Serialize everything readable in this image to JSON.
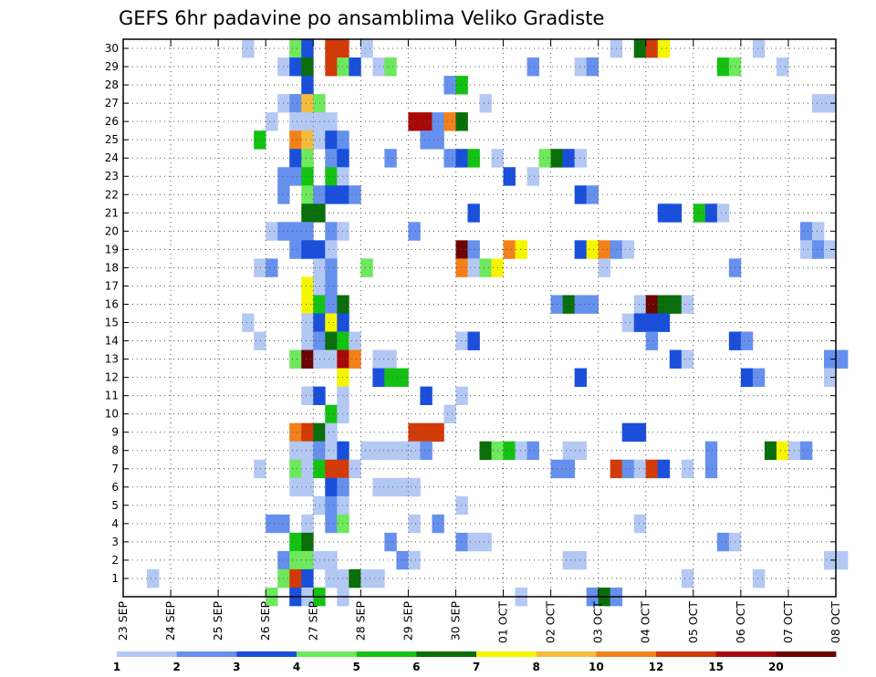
{
  "chart_data": {
    "type": "heatmap",
    "title": "GEFS 6hr padavine po ansamblima Veliko Gradiste",
    "y_categories": [
      "1",
      "2",
      "3",
      "4",
      "5",
      "6",
      "7",
      "8",
      "9",
      "10",
      "11",
      "12",
      "13",
      "14",
      "15",
      "16",
      "17",
      "18",
      "19",
      "20",
      "21",
      "22",
      "23",
      "24",
      "25",
      "26",
      "27",
      "28",
      "29",
      "30"
    ],
    "x_tick_labels": [
      "23 SEP",
      "24 SEP",
      "25 SEP",
      "26 SEP",
      "27 SEP",
      "28 SEP",
      "29 SEP",
      "30 SEP",
      "01 OCT",
      "02 OCT",
      "03 OCT",
      "04 OCT",
      "05 OCT",
      "06 OCT",
      "07 OCT",
      "08 OCT"
    ],
    "x_range_days": [
      0,
      15
    ],
    "steps_per_day": 4,
    "grid": true,
    "colorbar": {
      "labels": [
        "1",
        "2",
        "3",
        "4",
        "5",
        "6",
        "7",
        "8",
        "10",
        "12",
        "15",
        "20"
      ],
      "colors": [
        "#b4c8f4",
        "#6690ee",
        "#1a4fdc",
        "#6ee85c",
        "#14c214",
        "#0a6e0a",
        "#f5f500",
        "#f5bc3c",
        "#f38018",
        "#d23a08",
        "#a80808",
        "#6c0404"
      ]
    },
    "cells": [
      [
        30,
        10,
        1
      ],
      [
        30,
        14,
        4
      ],
      [
        30,
        15,
        3
      ],
      [
        30,
        17,
        10
      ],
      [
        30,
        18,
        10
      ],
      [
        30,
        20,
        1
      ],
      [
        30,
        41,
        1
      ],
      [
        30,
        43,
        6
      ],
      [
        30,
        44,
        10
      ],
      [
        30,
        45,
        7
      ],
      [
        30,
        53,
        1
      ],
      [
        30,
        65,
        2
      ],
      [
        30,
        70,
        1
      ],
      [
        29,
        13,
        1
      ],
      [
        29,
        14,
        3
      ],
      [
        29,
        15,
        6
      ],
      [
        29,
        17,
        10
      ],
      [
        29,
        18,
        4
      ],
      [
        29,
        19,
        3
      ],
      [
        29,
        21,
        1
      ],
      [
        29,
        22,
        4
      ],
      [
        29,
        34,
        2
      ],
      [
        29,
        38,
        1
      ],
      [
        29,
        39,
        2
      ],
      [
        29,
        50,
        5
      ],
      [
        29,
        51,
        4
      ],
      [
        29,
        55,
        1
      ],
      [
        29,
        73,
        6
      ],
      [
        28,
        15,
        3
      ],
      [
        28,
        27,
        2
      ],
      [
        28,
        28,
        5
      ],
      [
        27,
        13,
        1
      ],
      [
        27,
        14,
        2
      ],
      [
        27,
        15,
        8
      ],
      [
        27,
        16,
        4
      ],
      [
        27,
        30,
        1
      ],
      [
        27,
        58,
        1
      ],
      [
        27,
        59,
        1
      ],
      [
        26,
        12,
        1
      ],
      [
        26,
        14,
        1
      ],
      [
        26,
        15,
        1
      ],
      [
        26,
        16,
        1
      ],
      [
        26,
        17,
        1
      ],
      [
        26,
        24,
        11
      ],
      [
        26,
        25,
        11
      ],
      [
        26,
        26,
        2
      ],
      [
        26,
        27,
        9
      ],
      [
        26,
        28,
        6
      ],
      [
        26,
        74,
        1
      ],
      [
        25,
        11,
        5
      ],
      [
        25,
        14,
        9
      ],
      [
        25,
        15,
        8
      ],
      [
        25,
        16,
        1
      ],
      [
        25,
        17,
        3
      ],
      [
        25,
        18,
        2
      ],
      [
        25,
        25,
        2
      ],
      [
        25,
        26,
        2
      ],
      [
        24,
        14,
        3
      ],
      [
        24,
        15,
        4
      ],
      [
        24,
        17,
        2
      ],
      [
        24,
        18,
        3
      ],
      [
        24,
        22,
        2
      ],
      [
        24,
        27,
        2
      ],
      [
        24,
        28,
        3
      ],
      [
        24,
        29,
        5
      ],
      [
        24,
        31,
        1
      ],
      [
        24,
        35,
        4
      ],
      [
        24,
        36,
        6
      ],
      [
        24,
        37,
        3
      ],
      [
        24,
        38,
        1
      ],
      [
        23,
        13,
        2
      ],
      [
        23,
        14,
        2
      ],
      [
        23,
        15,
        5
      ],
      [
        23,
        17,
        5
      ],
      [
        23,
        18,
        1
      ],
      [
        23,
        32,
        3
      ],
      [
        23,
        34,
        1
      ],
      [
        22,
        13,
        2
      ],
      [
        22,
        15,
        4
      ],
      [
        22,
        16,
        2
      ],
      [
        22,
        17,
        3
      ],
      [
        22,
        18,
        3
      ],
      [
        22,
        19,
        2
      ],
      [
        22,
        38,
        3
      ],
      [
        22,
        39,
        2
      ],
      [
        21,
        15,
        6
      ],
      [
        21,
        16,
        6
      ],
      [
        21,
        29,
        3
      ],
      [
        21,
        45,
        3
      ],
      [
        21,
        46,
        3
      ],
      [
        21,
        48,
        5
      ],
      [
        21,
        49,
        3
      ],
      [
        21,
        50,
        1
      ],
      [
        20,
        12,
        1
      ],
      [
        20,
        13,
        2
      ],
      [
        20,
        14,
        2
      ],
      [
        20,
        15,
        2
      ],
      [
        20,
        17,
        2
      ],
      [
        20,
        18,
        1
      ],
      [
        20,
        24,
        2
      ],
      [
        20,
        57,
        2
      ],
      [
        20,
        58,
        1
      ],
      [
        20,
        68,
        1
      ],
      [
        20,
        69,
        3
      ],
      [
        20,
        70,
        4
      ],
      [
        20,
        71,
        1
      ],
      [
        19,
        14,
        2
      ],
      [
        19,
        15,
        3
      ],
      [
        19,
        16,
        3
      ],
      [
        19,
        17,
        1
      ],
      [
        19,
        28,
        12
      ],
      [
        19,
        29,
        2
      ],
      [
        19,
        32,
        9
      ],
      [
        19,
        33,
        7
      ],
      [
        19,
        38,
        3
      ],
      [
        19,
        39,
        7
      ],
      [
        19,
        40,
        9
      ],
      [
        19,
        41,
        2
      ],
      [
        19,
        42,
        1
      ],
      [
        19,
        57,
        1
      ],
      [
        19,
        58,
        2
      ],
      [
        19,
        59,
        1
      ],
      [
        18,
        11,
        1
      ],
      [
        18,
        12,
        2
      ],
      [
        18,
        16,
        1
      ],
      [
        18,
        17,
        2
      ],
      [
        18,
        20,
        4
      ],
      [
        18,
        28,
        9
      ],
      [
        18,
        29,
        1
      ],
      [
        18,
        30,
        4
      ],
      [
        18,
        31,
        7
      ],
      [
        18,
        40,
        1
      ],
      [
        18,
        51,
        2
      ],
      [
        17,
        15,
        7
      ],
      [
        17,
        16,
        1
      ],
      [
        17,
        17,
        2
      ],
      [
        16,
        15,
        7
      ],
      [
        16,
        16,
        5
      ],
      [
        16,
        17,
        2
      ],
      [
        16,
        18,
        6
      ],
      [
        16,
        36,
        2
      ],
      [
        16,
        37,
        6
      ],
      [
        16,
        38,
        2
      ],
      [
        16,
        39,
        2
      ],
      [
        16,
        43,
        1
      ],
      [
        16,
        44,
        12
      ],
      [
        16,
        45,
        6
      ],
      [
        16,
        46,
        6
      ],
      [
        16,
        47,
        1
      ],
      [
        15,
        10,
        1
      ],
      [
        15,
        15,
        1
      ],
      [
        15,
        16,
        3
      ],
      [
        15,
        17,
        7
      ],
      [
        15,
        18,
        3
      ],
      [
        15,
        42,
        1
      ],
      [
        15,
        43,
        3
      ],
      [
        15,
        44,
        3
      ],
      [
        15,
        45,
        3
      ],
      [
        14,
        11,
        1
      ],
      [
        14,
        15,
        1
      ],
      [
        14,
        16,
        2
      ],
      [
        14,
        17,
        6
      ],
      [
        14,
        18,
        5
      ],
      [
        14,
        19,
        1
      ],
      [
        14,
        28,
        1
      ],
      [
        14,
        29,
        3
      ],
      [
        14,
        44,
        2
      ],
      [
        14,
        51,
        3
      ],
      [
        14,
        52,
        2
      ],
      [
        13,
        14,
        4
      ],
      [
        13,
        15,
        12
      ],
      [
        13,
        16,
        1
      ],
      [
        13,
        17,
        1
      ],
      [
        13,
        18,
        11
      ],
      [
        13,
        19,
        9
      ],
      [
        13,
        21,
        1
      ],
      [
        13,
        22,
        1
      ],
      [
        13,
        46,
        3
      ],
      [
        13,
        47,
        1
      ],
      [
        13,
        59,
        2
      ],
      [
        13,
        60,
        2
      ],
      [
        12,
        18,
        7
      ],
      [
        12,
        21,
        3
      ],
      [
        12,
        22,
        5
      ],
      [
        12,
        23,
        5
      ],
      [
        12,
        38,
        3
      ],
      [
        12,
        52,
        3
      ],
      [
        12,
        53,
        2
      ],
      [
        12,
        59,
        1
      ],
      [
        11,
        15,
        1
      ],
      [
        11,
        16,
        3
      ],
      [
        11,
        18,
        1
      ],
      [
        11,
        25,
        3
      ],
      [
        11,
        28,
        1
      ],
      [
        10,
        17,
        5
      ],
      [
        10,
        18,
        1
      ],
      [
        10,
        27,
        1
      ],
      [
        9,
        14,
        9
      ],
      [
        9,
        15,
        10
      ],
      [
        9,
        16,
        6
      ],
      [
        9,
        17,
        1
      ],
      [
        9,
        24,
        10
      ],
      [
        9,
        25,
        10
      ],
      [
        9,
        26,
        10
      ],
      [
        9,
        42,
        3
      ],
      [
        9,
        43,
        3
      ],
      [
        8,
        14,
        1
      ],
      [
        8,
        15,
        1
      ],
      [
        8,
        16,
        2
      ],
      [
        8,
        17,
        1
      ],
      [
        8,
        18,
        3
      ],
      [
        8,
        20,
        1
      ],
      [
        8,
        21,
        1
      ],
      [
        8,
        22,
        1
      ],
      [
        8,
        23,
        1
      ],
      [
        8,
        24,
        1
      ],
      [
        8,
        25,
        2
      ],
      [
        8,
        30,
        6
      ],
      [
        8,
        31,
        4
      ],
      [
        8,
        32,
        5
      ],
      [
        8,
        33,
        1
      ],
      [
        8,
        34,
        2
      ],
      [
        8,
        37,
        1
      ],
      [
        8,
        38,
        1
      ],
      [
        8,
        49,
        2
      ],
      [
        8,
        54,
        6
      ],
      [
        8,
        55,
        7
      ],
      [
        8,
        56,
        1
      ],
      [
        8,
        57,
        2
      ],
      [
        7,
        11,
        1
      ],
      [
        7,
        14,
        4
      ],
      [
        7,
        15,
        1
      ],
      [
        7,
        16,
        5
      ],
      [
        7,
        17,
        10
      ],
      [
        7,
        18,
        10
      ],
      [
        7,
        19,
        1
      ],
      [
        7,
        36,
        2
      ],
      [
        7,
        37,
        2
      ],
      [
        7,
        41,
        10
      ],
      [
        7,
        42,
        2
      ],
      [
        7,
        43,
        1
      ],
      [
        7,
        44,
        10
      ],
      [
        7,
        45,
        3
      ],
      [
        7,
        47,
        1
      ],
      [
        7,
        49,
        2
      ],
      [
        6,
        14,
        1
      ],
      [
        6,
        15,
        1
      ],
      [
        6,
        17,
        3
      ],
      [
        6,
        18,
        2
      ],
      [
        6,
        21,
        1
      ],
      [
        6,
        22,
        1
      ],
      [
        6,
        23,
        1
      ],
      [
        6,
        24,
        1
      ],
      [
        5,
        16,
        1
      ],
      [
        5,
        17,
        2
      ],
      [
        5,
        18,
        1
      ],
      [
        5,
        28,
        1
      ],
      [
        4,
        12,
        2
      ],
      [
        4,
        13,
        2
      ],
      [
        4,
        15,
        1
      ],
      [
        4,
        17,
        2
      ],
      [
        4,
        18,
        4
      ],
      [
        4,
        24,
        1
      ],
      [
        4,
        26,
        2
      ],
      [
        4,
        43,
        1
      ],
      [
        3,
        14,
        5
      ],
      [
        3,
        15,
        6
      ],
      [
        3,
        22,
        2
      ],
      [
        3,
        28,
        2
      ],
      [
        3,
        29,
        1
      ],
      [
        3,
        30,
        1
      ],
      [
        3,
        50,
        2
      ],
      [
        3,
        51,
        1
      ],
      [
        2,
        13,
        2
      ],
      [
        2,
        14,
        4
      ],
      [
        2,
        15,
        4
      ],
      [
        2,
        16,
        1
      ],
      [
        2,
        17,
        1
      ],
      [
        2,
        23,
        2
      ],
      [
        2,
        24,
        1
      ],
      [
        2,
        37,
        1
      ],
      [
        2,
        38,
        1
      ],
      [
        2,
        59,
        1
      ],
      [
        2,
        60,
        1
      ],
      [
        1,
        2,
        1
      ],
      [
        1,
        13,
        4
      ],
      [
        1,
        14,
        10
      ],
      [
        1,
        15,
        3
      ],
      [
        1,
        17,
        1
      ],
      [
        1,
        18,
        1
      ],
      [
        1,
        19,
        6
      ],
      [
        1,
        20,
        1
      ],
      [
        1,
        21,
        1
      ],
      [
        1,
        47,
        1
      ],
      [
        1,
        53,
        1
      ],
      [
        0,
        12,
        4
      ],
      [
        0,
        14,
        3
      ],
      [
        0,
        15,
        1
      ],
      [
        0,
        16,
        5
      ],
      [
        0,
        18,
        1
      ],
      [
        0,
        33,
        1
      ],
      [
        0,
        39,
        2
      ],
      [
        0,
        40,
        6
      ],
      [
        0,
        41,
        2
      ]
    ]
  }
}
